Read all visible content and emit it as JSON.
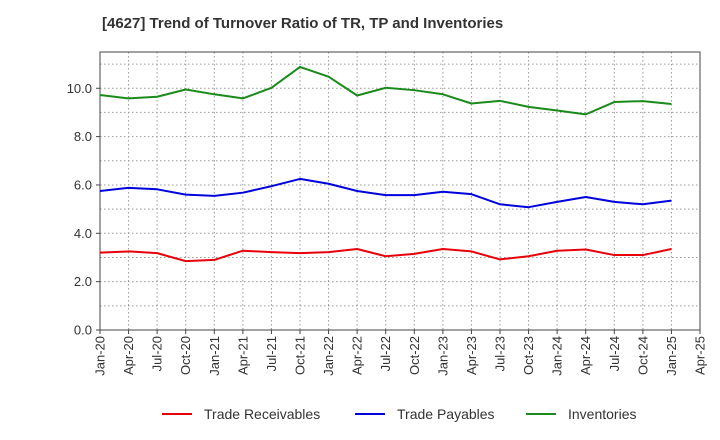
{
  "chart_data": {
    "type": "line",
    "title": "[4627]  Trend of Turnover Ratio of TR, TP and Inventories",
    "xlabel": "",
    "ylabel": "",
    "x": [
      "Jan-20",
      "Apr-20",
      "Jul-20",
      "Oct-20",
      "Jan-21",
      "Apr-21",
      "Jul-21",
      "Oct-21",
      "Jan-22",
      "Apr-22",
      "Jul-22",
      "Oct-22",
      "Jan-23",
      "Apr-23",
      "Jul-23",
      "Oct-23",
      "Jan-24",
      "Apr-24",
      "Jul-24",
      "Oct-24",
      "Jan-25"
    ],
    "x_ticks": [
      "Jan-20",
      "Apr-20",
      "Jul-20",
      "Oct-20",
      "Jan-21",
      "Apr-21",
      "Jul-21",
      "Oct-21",
      "Jan-22",
      "Apr-22",
      "Jul-22",
      "Oct-22",
      "Jan-23",
      "Apr-23",
      "Jul-23",
      "Oct-23",
      "Jan-24",
      "Apr-24",
      "Jul-24",
      "Oct-24",
      "Jan-25",
      "Apr-25"
    ],
    "y_ticks": [
      "0.0",
      "2.0",
      "4.0",
      "6.0",
      "8.0",
      "10.0"
    ],
    "ylim": [
      0,
      11.5
    ],
    "grid": true,
    "legend_position": "bottom",
    "series": [
      {
        "name": "Trade Receivables",
        "color": "#e8000b",
        "values": [
          3.2,
          3.25,
          3.18,
          2.85,
          2.9,
          3.28,
          3.22,
          3.18,
          3.22,
          3.35,
          3.05,
          3.15,
          3.35,
          3.25,
          2.92,
          3.05,
          3.28,
          3.33,
          3.1,
          3.1,
          3.35
        ]
      },
      {
        "name": "Trade Payables",
        "color": "#0000dd",
        "values": [
          5.75,
          5.88,
          5.82,
          5.6,
          5.55,
          5.68,
          5.95,
          6.25,
          6.05,
          5.75,
          5.58,
          5.58,
          5.72,
          5.62,
          5.2,
          5.08,
          5.3,
          5.5,
          5.3,
          5.2,
          5.35
        ]
      },
      {
        "name": "Inventories",
        "color": "#1a8a1a",
        "values": [
          9.72,
          9.58,
          9.65,
          9.95,
          9.75,
          9.58,
          10.02,
          10.88,
          10.48,
          9.7,
          10.02,
          9.92,
          9.75,
          9.37,
          9.48,
          9.23,
          9.08,
          8.92,
          9.43,
          9.47,
          9.35
        ]
      }
    ]
  }
}
